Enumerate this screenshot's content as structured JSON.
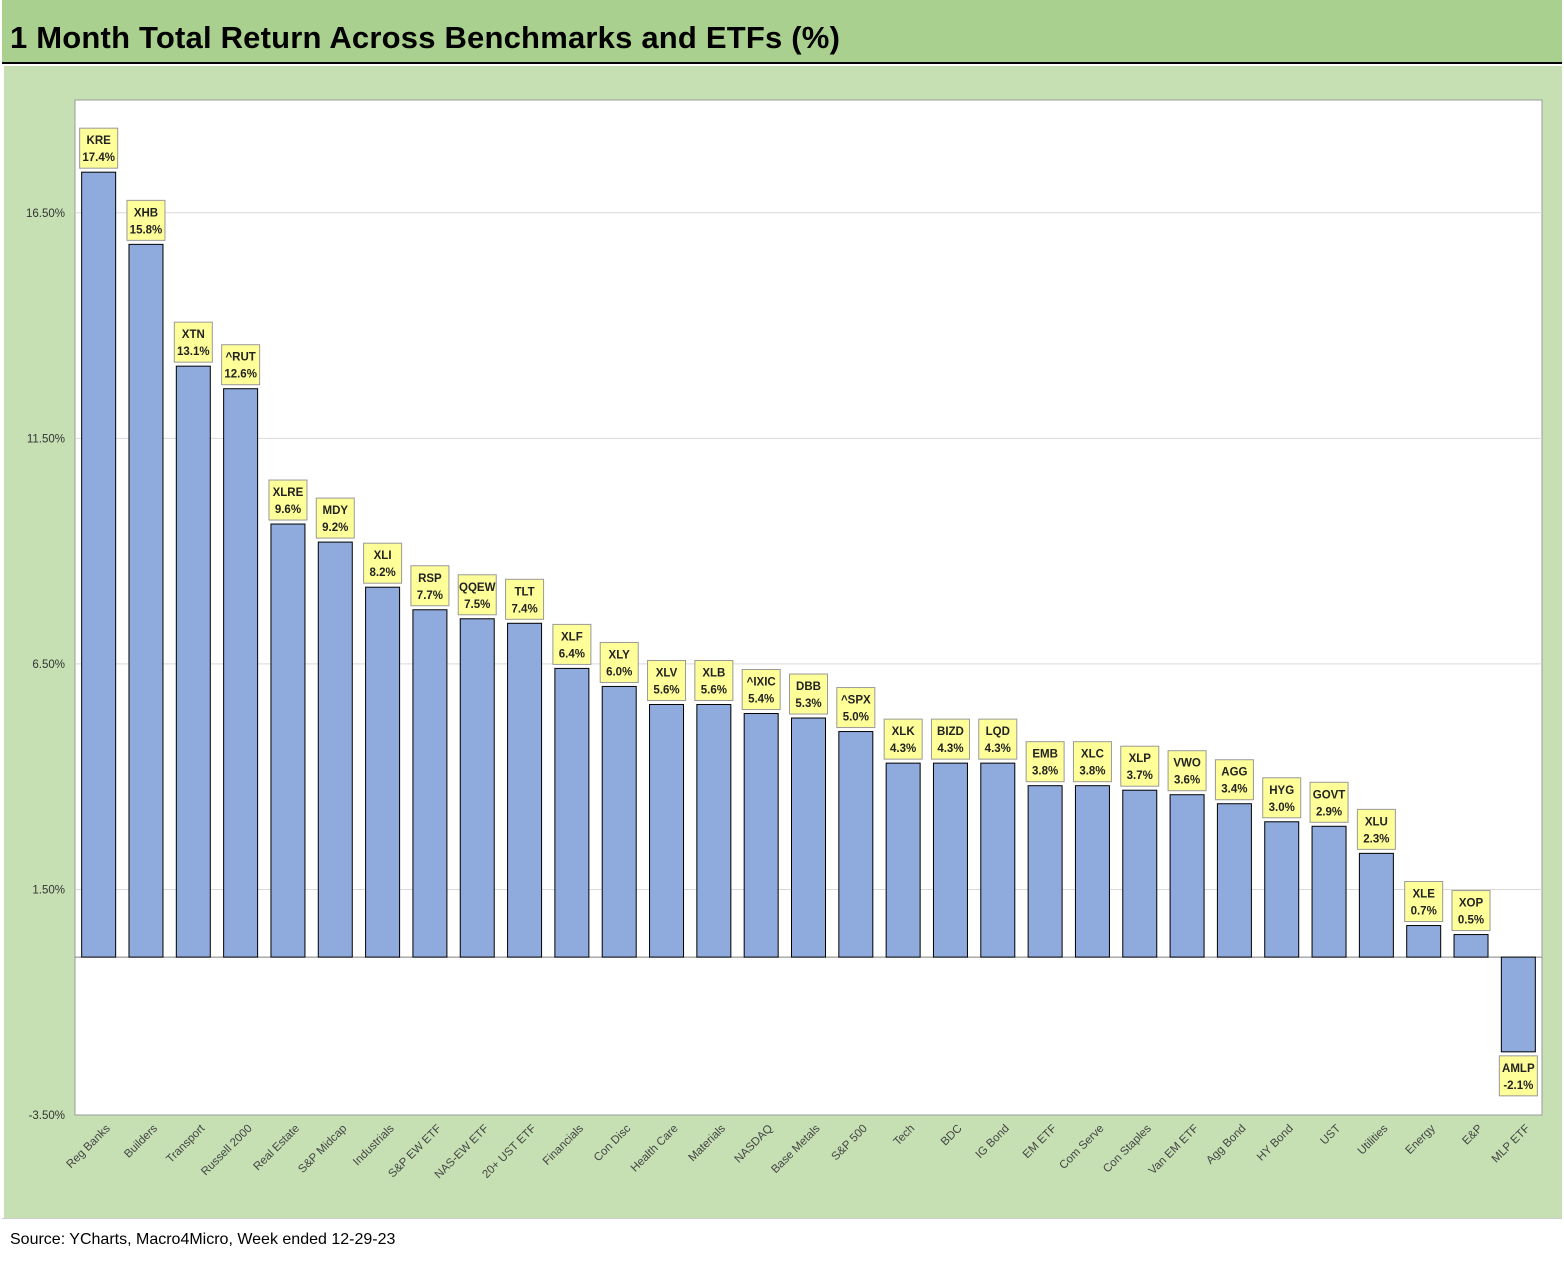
{
  "title": "1 Month Total Return Across Benchmarks and ETFs (%)",
  "source": "Source: YCharts, Macro4Micro, Week ended 12-29-23",
  "colors": {
    "title_bg": "#a9d08e",
    "chart_bg": "#c6e0b4",
    "plot_bg": "#ffffff",
    "bar": "#8faadc",
    "bar_border": "#000000",
    "label_bg": "#ffff99",
    "gridline": "#d9d9d9"
  },
  "chart_data": {
    "type": "bar",
    "title": "1 Month Total Return Across Benchmarks and ETFs (%)",
    "ylim": [
      -3.5,
      19.0
    ],
    "yticks": [
      -3.5,
      1.5,
      6.5,
      11.5,
      16.5
    ],
    "ytick_labels": [
      "-3.50%",
      "1.50%",
      "6.50%",
      "11.50%",
      "16.50%"
    ],
    "grid": true,
    "legend": "none",
    "categories": [
      "Reg Banks",
      "Builders",
      "Transport",
      "Russell 2000",
      "Real Estate",
      "S&P Midcap",
      "Industrials",
      "S&P EW ETF",
      "NAS-EW ETF",
      "20+ UST ETF",
      "Financials",
      "Con Disc",
      "Health Care",
      "Materials",
      "NASDAQ",
      "Base Metals",
      "S&P 500",
      "Tech",
      "BDC",
      "IG Bond",
      "EM ETF",
      "Com Serve",
      "Con Staples",
      "Van EM ETF",
      "Agg Bond",
      "HY Bond",
      "UST",
      "Utilities",
      "Energy",
      "E&P",
      "MLP ETF"
    ],
    "tickers": [
      "KRE",
      "XHB",
      "XTN",
      "^RUT",
      "XLRE",
      "MDY",
      "XLI",
      "RSP",
      "QQEW",
      "TLT",
      "XLF",
      "XLY",
      "XLV",
      "XLB",
      "^IXIC",
      "DBB",
      "^SPX",
      "XLK",
      "BIZD",
      "LQD",
      "EMB",
      "XLC",
      "XLP",
      "VWO",
      "AGG",
      "HYG",
      "GOVT",
      "XLU",
      "XLE",
      "XOP",
      "AMLP"
    ],
    "values": [
      17.4,
      15.8,
      13.1,
      12.6,
      9.6,
      9.2,
      8.2,
      7.7,
      7.5,
      7.4,
      6.4,
      6.0,
      5.6,
      5.6,
      5.4,
      5.3,
      5.0,
      4.3,
      4.3,
      4.3,
      3.8,
      3.8,
      3.7,
      3.6,
      3.4,
      3.0,
      2.9,
      2.3,
      0.7,
      0.5,
      -2.1
    ],
    "value_labels": [
      "17.4%",
      "15.8%",
      "13.1%",
      "12.6%",
      "9.6%",
      "9.2%",
      "8.2%",
      "7.7%",
      "7.5%",
      "7.4%",
      "6.4%",
      "6.0%",
      "5.6%",
      "5.6%",
      "5.4%",
      "5.3%",
      "5.0%",
      "4.3%",
      "4.3%",
      "4.3%",
      "3.8%",
      "3.8%",
      "3.7%",
      "3.6%",
      "3.4%",
      "3.0%",
      "2.9%",
      "2.3%",
      "0.7%",
      "0.5%",
      "-2.1%"
    ]
  }
}
